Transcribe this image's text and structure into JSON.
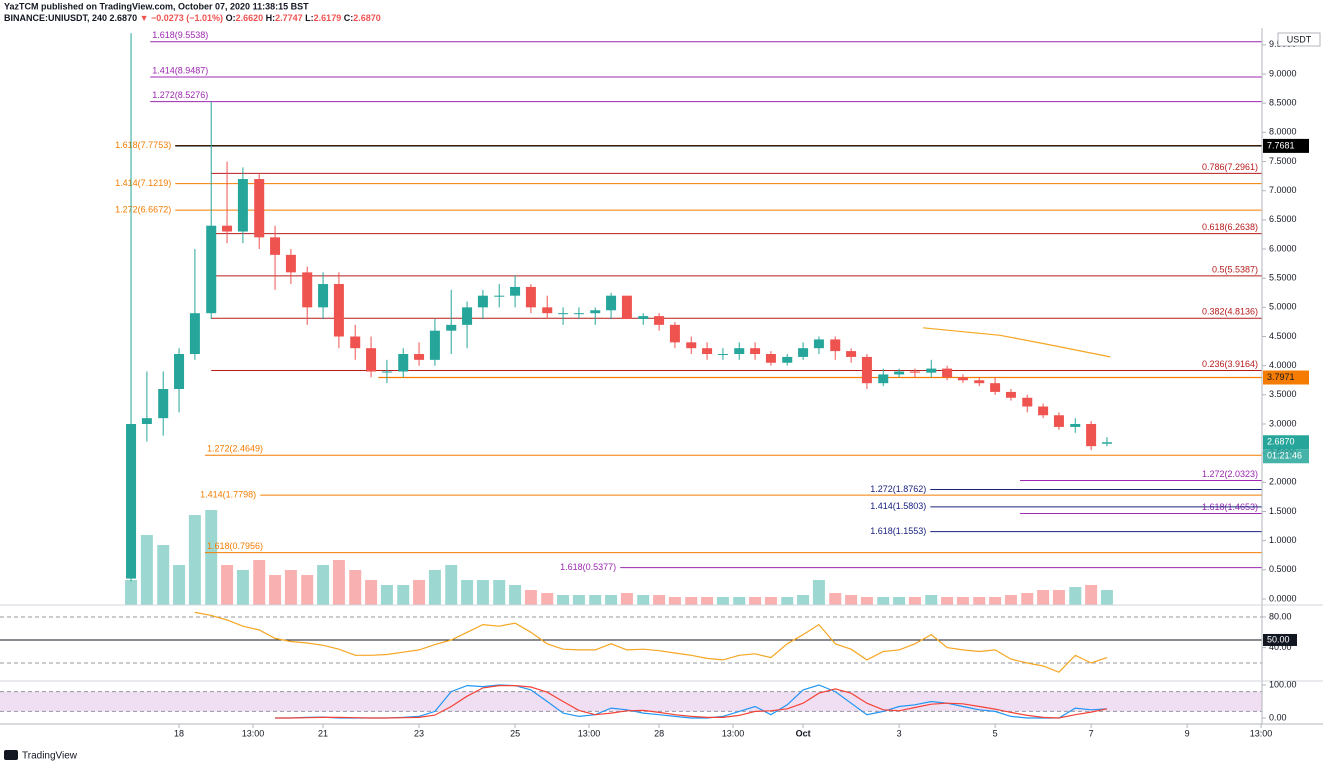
{
  "header": {
    "author": "YazTCM published on TradingView.com, October 07, 2020 11:38:15 BST",
    "symbol": "BINANCE:UNIUSDT, 240",
    "price": "2.6870",
    "change": "▼ −0.0273 (−1.01%)",
    "ohlc": [
      [
        "O:",
        "2.6620"
      ],
      [
        "H:",
        "2.7747"
      ],
      [
        "L:",
        "2.6179"
      ],
      [
        "C:",
        "2.6870"
      ]
    ]
  },
  "footer": {
    "brand": "TradingView"
  },
  "chart_data": {
    "type": "candlestick",
    "currency": "USDT",
    "xlim": [
      14.27,
      40.56
    ],
    "xticks": [
      18,
      {
        "value": 19.54,
        "label": "13:00"
      },
      21,
      23,
      25,
      {
        "value": 26.54,
        "label": "13:00"
      },
      28,
      {
        "value": 29.54,
        "label": "13:00"
      },
      {
        "value": 31,
        "label": "Oct"
      },
      {
        "value": 33,
        "label": "3"
      },
      {
        "value": 35,
        "label": "5"
      },
      {
        "value": 37,
        "label": "7"
      },
      {
        "value": 39,
        "label": "9"
      },
      {
        "value": 40.54,
        "label": "13:00"
      }
    ],
    "ylim": [
      -0.103,
      9.755
    ],
    "yticks": [
      {
        "value": 0,
        "label": "0.0000"
      },
      {
        "value": 0.5,
        "label": "0.5000"
      },
      {
        "value": 1,
        "label": "1.0000"
      },
      {
        "value": 1.5,
        "label": "1.5000"
      },
      {
        "value": 2,
        "label": "2.0000"
      },
      {
        "value": 2.5,
        "label": "2.5000"
      },
      {
        "value": 3,
        "label": "3.0000"
      },
      {
        "value": 3.5,
        "label": "3.5000"
      },
      {
        "value": 4,
        "label": "4.0000"
      },
      {
        "value": 4.5,
        "label": "4.5000"
      },
      {
        "value": 5,
        "label": "5.0000"
      },
      {
        "value": 5.5,
        "label": "5.5000"
      },
      {
        "value": 6,
        "label": "6.0000"
      },
      {
        "value": 6.5,
        "label": "6.5000"
      },
      {
        "value": 7,
        "label": "7.0000"
      },
      {
        "value": 7.5,
        "label": "7.5000"
      },
      {
        "value": 8,
        "label": "8.0000"
      },
      {
        "value": 8.5,
        "label": "8.5000"
      },
      {
        "value": 9,
        "label": "9.0000"
      },
      {
        "value": 9.5,
        "label": "9.5000"
      }
    ],
    "x": [
      17,
      17.33,
      17.67,
      18,
      18.33,
      18.67,
      19,
      19.33,
      19.67,
      20,
      20.33,
      20.67,
      21,
      21.33,
      21.67,
      22,
      22.33,
      22.67,
      23,
      23.33,
      23.67,
      24,
      24.33,
      24.67,
      25,
      25.33,
      25.67,
      26,
      26.33,
      26.67,
      27,
      27.33,
      27.67,
      28,
      28.33,
      28.67,
      29,
      29.33,
      29.67,
      30,
      30.33,
      30.67,
      31,
      31.33,
      31.67,
      32,
      32.33,
      32.67,
      33,
      33.33,
      33.67,
      34,
      34.33,
      34.67,
      35,
      35.33,
      35.67,
      36,
      36.33,
      36.67,
      37,
      37.33
    ],
    "open": [
      0.35,
      3.0,
      3.1,
      3.6,
      4.2,
      4.9,
      6.4,
      6.3,
      7.2,
      6.2,
      5.9,
      5.6,
      5.0,
      5.4,
      4.5,
      4.3,
      3.9,
      3.9,
      4.2,
      4.1,
      4.6,
      4.7,
      5.0,
      5.2,
      5.2,
      5.35,
      5.0,
      4.9,
      4.9,
      4.9,
      4.95,
      5.2,
      4.8,
      4.85,
      4.7,
      4.4,
      4.3,
      4.2,
      4.2,
      4.3,
      4.2,
      4.05,
      4.15,
      4.3,
      4.45,
      4.25,
      4.15,
      3.7,
      3.85,
      3.9,
      3.88,
      3.95,
      3.8,
      3.75,
      3.7,
      3.55,
      3.45,
      3.3,
      3.15,
      2.95,
      3.0,
      2.662
    ],
    "high": [
      9.7,
      3.9,
      3.9,
      4.3,
      6.0,
      8.53,
      7.5,
      7.4,
      7.3,
      6.4,
      6.0,
      5.7,
      5.6,
      5.6,
      4.7,
      4.5,
      4.1,
      4.3,
      4.4,
      4.8,
      5.3,
      5.1,
      5.3,
      5.4,
      5.55,
      5.4,
      5.2,
      5.0,
      5.0,
      5.0,
      5.25,
      5.2,
      4.9,
      4.9,
      4.75,
      4.5,
      4.4,
      4.3,
      4.4,
      4.4,
      4.25,
      4.2,
      4.4,
      4.5,
      4.5,
      4.3,
      4.2,
      3.95,
      3.95,
      3.95,
      4.1,
      4.0,
      3.85,
      3.8,
      3.8,
      3.6,
      3.5,
      3.35,
      3.2,
      3.1,
      3.05,
      2.7747
    ],
    "low": [
      0.3,
      2.7,
      2.8,
      3.2,
      4.1,
      4.8,
      6.1,
      6.1,
      6.0,
      5.3,
      5.4,
      4.7,
      4.8,
      4.3,
      4.1,
      3.8,
      3.7,
      3.8,
      4.0,
      4.0,
      4.2,
      4.3,
      4.8,
      5.0,
      5.0,
      4.9,
      4.8,
      4.7,
      4.8,
      4.7,
      4.8,
      4.8,
      4.7,
      4.6,
      4.3,
      4.2,
      4.1,
      4.1,
      4.1,
      4.1,
      4.0,
      4.0,
      4.1,
      4.2,
      4.1,
      4.05,
      3.6,
      3.65,
      3.8,
      3.8,
      3.8,
      3.75,
      3.7,
      3.65,
      3.5,
      3.4,
      3.2,
      3.1,
      2.9,
      2.85,
      2.55,
      2.6179
    ],
    "close": [
      3.0,
      3.1,
      3.6,
      4.2,
      4.9,
      6.4,
      6.3,
      7.2,
      6.2,
      5.9,
      5.6,
      5.0,
      5.4,
      4.5,
      4.3,
      3.9,
      3.9,
      4.2,
      4.1,
      4.6,
      4.7,
      5.0,
      5.2,
      5.2,
      5.35,
      5.0,
      4.9,
      4.9,
      4.9,
      4.95,
      5.2,
      4.8,
      4.85,
      4.7,
      4.4,
      4.3,
      4.2,
      4.2,
      4.3,
      4.2,
      4.05,
      4.15,
      4.3,
      4.45,
      4.25,
      4.15,
      3.7,
      3.85,
      3.9,
      3.88,
      3.95,
      3.8,
      3.75,
      3.7,
      3.55,
      3.45,
      3.3,
      3.15,
      2.95,
      3.0,
      2.62,
      2.687
    ],
    "volume": [
      25,
      70,
      60,
      40,
      90,
      95,
      40,
      35,
      45,
      30,
      35,
      30,
      40,
      45,
      35,
      25,
      20,
      20,
      25,
      35,
      40,
      25,
      25,
      25,
      20,
      15,
      12,
      10,
      10,
      10,
      10,
      12,
      10,
      10,
      8,
      8,
      8,
      8,
      8,
      8,
      8,
      8,
      10,
      25,
      12,
      10,
      8,
      8,
      8,
      8,
      10,
      8,
      8,
      8,
      8,
      10,
      12,
      15,
      15,
      18,
      20,
      15
    ],
    "volume_ylim": [
      0,
      575
    ],
    "up_color": "#26a69a",
    "down_color": "#ef5350",
    "levels": [
      {
        "label": "1.618(9.5538)",
        "value": 9.5538,
        "color": "#9c27b0",
        "x0": 17.4
      },
      {
        "label": "1.414(8.9487)",
        "value": 8.9487,
        "color": "#9c27b0",
        "x0": 17.4
      },
      {
        "label": "1.272(8.5276)",
        "value": 8.5276,
        "color": "#9c27b0",
        "x0": 17.4
      },
      {
        "label": "1.618(7.7753)",
        "value": 7.7753,
        "color": "#f57c00",
        "x0": 17.92
      },
      {
        "label": "1.414(7.1219)",
        "value": 7.1219,
        "color": "#f57c00",
        "x0": 17.92
      },
      {
        "label": "1.272(6.6672)",
        "value": 6.6672,
        "color": "#f57c00",
        "x0": 17.92
      },
      {
        "label": "0.786(7.2961)",
        "value": 7.2961,
        "color": "#b71c1c",
        "x0": 18.67
      },
      {
        "label": "0.618(6.2638)",
        "value": 6.2638,
        "color": "#b71c1c",
        "x0": 18.67
      },
      {
        "label": "0.5(5.5387)",
        "value": 5.5387,
        "color": "#b71c1c",
        "x0": 18.67
      },
      {
        "label": "0.382(4.8136)",
        "value": 4.8136,
        "color": "#b71c1c",
        "x0": 18.67
      },
      {
        "label": "0.236(3.9164)",
        "value": 3.9164,
        "color": "#b71c1c",
        "x0": 18.67
      },
      {
        "label": "1.272(2.4649)",
        "value": 2.4649,
        "color": "#f57c00",
        "x0": 18.54
      },
      {
        "label": "1.414(1.7798)",
        "value": 1.7798,
        "color": "#f57c00",
        "x0": 19.69
      },
      {
        "label": "1.618(0.7956)",
        "value": 0.7956,
        "color": "#f57c00",
        "x0": 18.54
      },
      {
        "label": "1.272(2.0323)",
        "value": 2.0323,
        "color": "#9c27b0",
        "x0": 35.52
      },
      {
        "label": "1.618(1.4653)",
        "value": 1.4653,
        "color": "#9c27b0",
        "x0": 35.52
      },
      {
        "label": "1.272(1.8762)",
        "value": 1.8762,
        "color": "#1a237e",
        "x0": 33.65
      },
      {
        "label": "1.414(1.5803)",
        "value": 1.5803,
        "color": "#1a237e",
        "x0": 33.65
      },
      {
        "label": "1.618(1.1553)",
        "value": 1.1553,
        "color": "#1a237e",
        "x0": 33.65
      },
      {
        "label": "1.618(0.5377)",
        "value": 0.5377,
        "color": "#9c27b0",
        "x0": 27.19
      }
    ],
    "axis_tags": [
      {
        "value": 7.7681,
        "label": "7.7681",
        "color": "#000000",
        "x0": 17.92
      },
      {
        "value": 3.7971,
        "label": "3.7971",
        "color": "#f57c00",
        "x0": 22.15
      }
    ],
    "ma": {
      "color": "#f5a623",
      "x": [
        33.5,
        35.1,
        36.0,
        37.4
      ],
      "values": [
        4.65,
        4.52,
        4.38,
        4.15
      ]
    },
    "last_price": {
      "value": 2.687,
      "label": "2.6870"
    },
    "countdown": "01:21:46",
    "rsi": {
      "color": "#f5a623",
      "ylim": [
        -2.2,
        94.3
      ],
      "yticks": [
        {
          "value": 80,
          "label": "80.00"
        },
        {
          "value": 50,
          "label": "50.00"
        },
        {
          "value": 40,
          "label": "40.00"
        }
      ],
      "bands": [
        80,
        20
      ],
      "values": [
        null,
        null,
        null,
        null,
        86,
        82,
        76,
        68,
        63,
        52,
        48,
        46,
        43,
        38,
        30,
        30,
        31,
        34,
        37,
        44,
        50,
        60,
        70,
        68,
        72,
        60,
        45,
        38,
        37,
        37,
        45,
        37,
        38,
        36,
        33,
        30,
        26,
        24,
        30,
        32,
        27,
        45,
        57,
        70,
        45,
        38,
        24,
        35,
        37,
        45,
        57,
        40,
        37,
        35,
        37,
        25,
        20,
        16,
        8,
        30,
        20,
        27
      ]
    },
    "stoch": {
      "ylim": [
        -18,
        112
      ],
      "yticks": [
        {
          "value": 100,
          "label": "100.00"
        },
        {
          "value": 0,
          "label": "0.00"
        }
      ],
      "bands": [
        80,
        20
      ],
      "series": [
        {
          "color": "#2196f3",
          "values": [
            null,
            null,
            null,
            null,
            null,
            null,
            null,
            null,
            null,
            0,
            0,
            2,
            3,
            0,
            0,
            0,
            0,
            2,
            5,
            20,
            80,
            98,
            95,
            100,
            98,
            85,
            50,
            15,
            5,
            10,
            30,
            25,
            15,
            10,
            5,
            0,
            0,
            5,
            20,
            35,
            10,
            40,
            85,
            100,
            80,
            45,
            10,
            20,
            35,
            40,
            50,
            45,
            35,
            25,
            20,
            5,
            0,
            0,
            0,
            30,
            25,
            28
          ]
        },
        {
          "color": "#f44336",
          "values": [
            null,
            null,
            null,
            null,
            null,
            null,
            null,
            null,
            null,
            0,
            0,
            1,
            2,
            2,
            1,
            0,
            0,
            1,
            2,
            9,
            35,
            66,
            91,
            98,
            98,
            94,
            78,
            50,
            23,
            10,
            15,
            22,
            23,
            17,
            10,
            5,
            2,
            2,
            8,
            20,
            22,
            28,
            45,
            75,
            88,
            75,
            45,
            25,
            22,
            32,
            42,
            45,
            43,
            35,
            27,
            17,
            8,
            2,
            0,
            10,
            18,
            28
          ]
        }
      ]
    }
  }
}
